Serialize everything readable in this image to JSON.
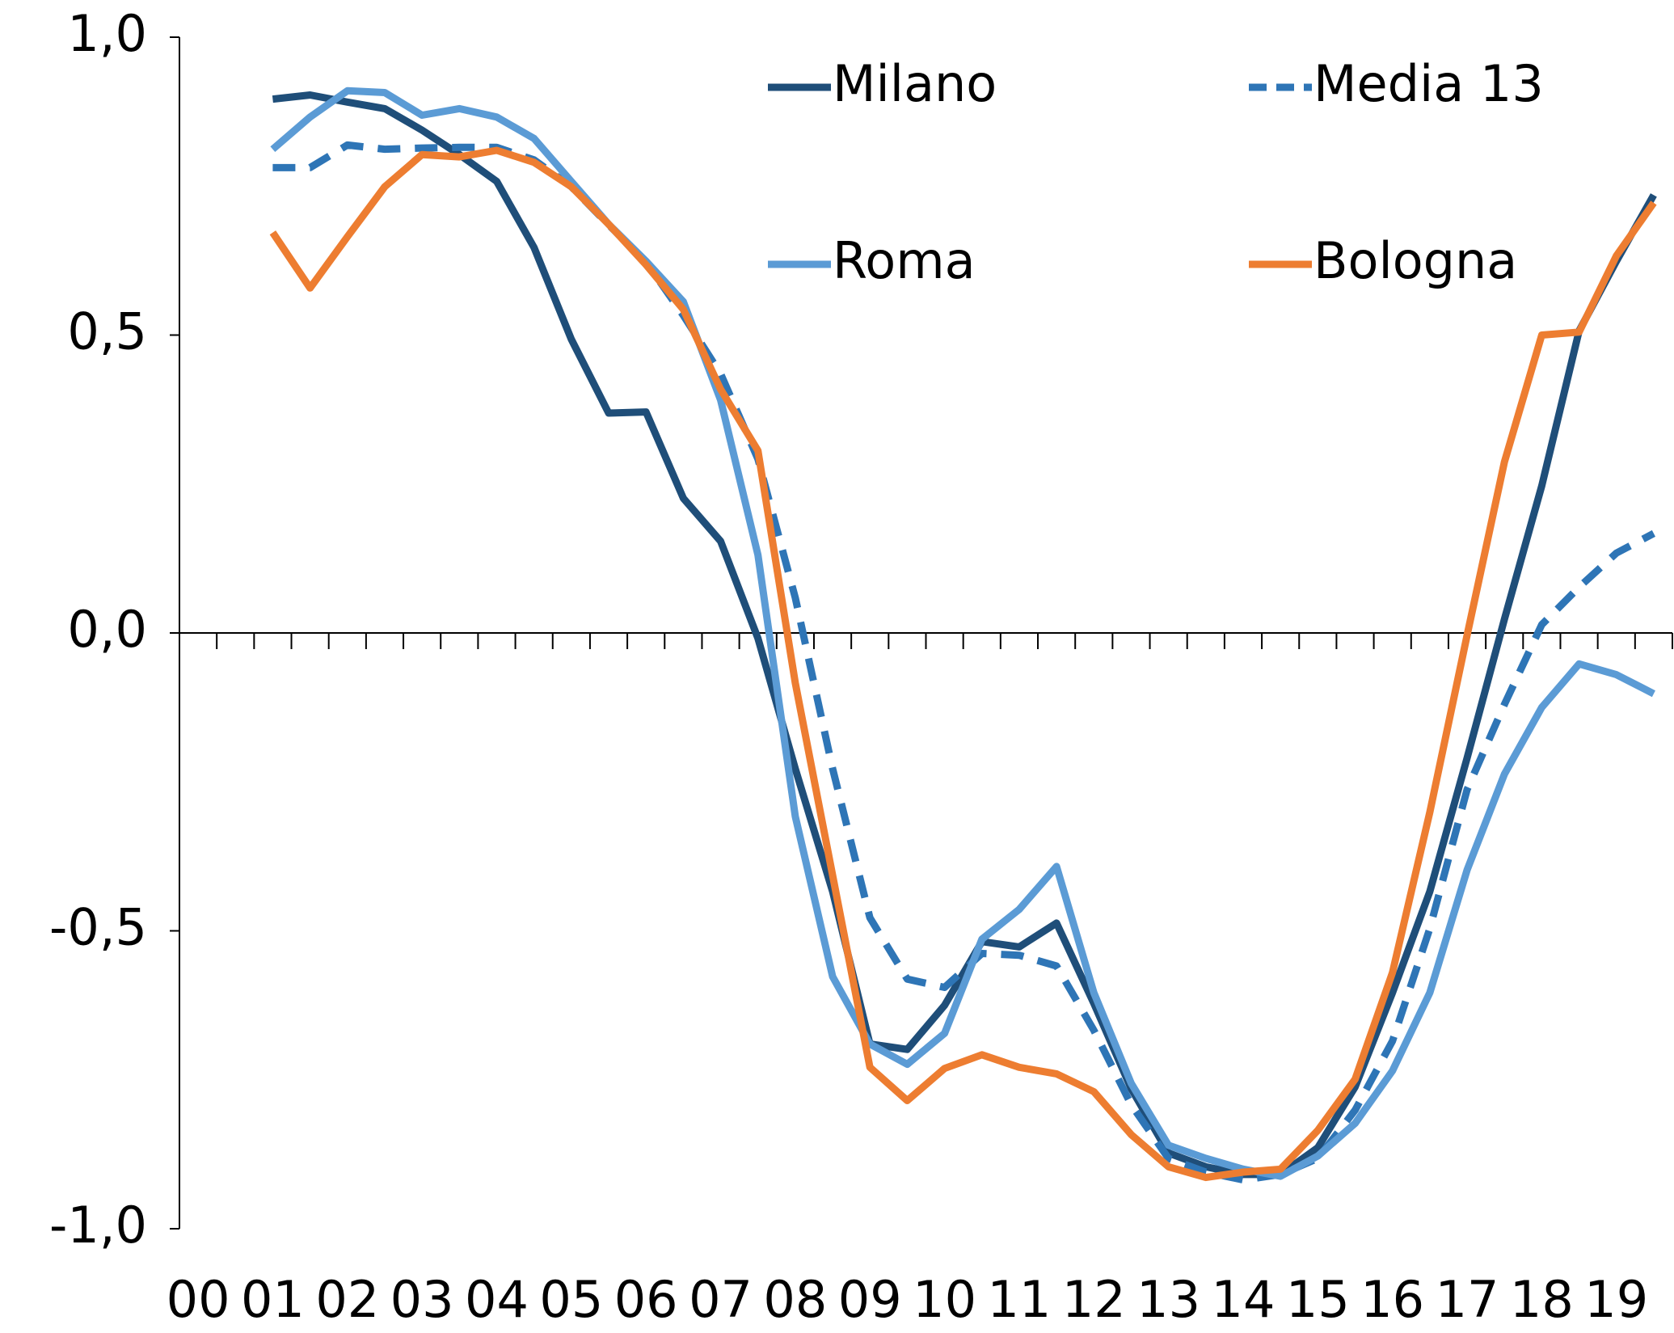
{
  "chart_data": {
    "type": "line",
    "categories": [
      "00",
      null,
      "01",
      null,
      "02",
      null,
      "03",
      null,
      "04",
      null,
      "05",
      null,
      "06",
      null,
      "07",
      null,
      "08",
      null,
      "09",
      null,
      "10",
      null,
      "11",
      null,
      "12",
      null,
      "13",
      null,
      "14",
      null,
      "15",
      null,
      "16",
      null,
      "17",
      null,
      "18",
      null,
      "19",
      null
    ],
    "ylim": [
      -1,
      1
    ],
    "yticks": [
      {
        "value": -1,
        "label": "-1,0"
      },
      {
        "value": -0.5,
        "label": "-0,5"
      },
      {
        "value": 0,
        "label": "0,0"
      },
      {
        "value": 0.5,
        "label": "0,5"
      },
      {
        "value": 1,
        "label": "1,0"
      }
    ],
    "grid": false,
    "legend": "top-right",
    "series": [
      {
        "name": "Milano",
        "color": "#1f4e79",
        "dashed": false,
        "values": [
          null,
          null,
          0.896,
          0.903,
          0.891,
          0.88,
          0.844,
          0.803,
          0.758,
          0.647,
          0.493,
          0.369,
          0.371,
          0.226,
          0.154,
          -0.009,
          -0.228,
          -0.434,
          -0.69,
          -0.699,
          -0.625,
          -0.518,
          -0.527,
          -0.487,
          -0.622,
          -0.765,
          -0.873,
          -0.896,
          -0.909,
          -0.909,
          -0.864,
          -0.762,
          -0.604,
          -0.434,
          -0.21,
          0.023,
          0.247,
          0.507,
          0.624,
          0.735
        ]
      },
      {
        "name": "Media 13",
        "color": "#2e75b6",
        "dashed": true,
        "values": [
          null,
          null,
          0.781,
          0.781,
          0.819,
          0.812,
          0.814,
          0.815,
          0.815,
          0.794,
          0.749,
          0.685,
          0.623,
          0.533,
          0.435,
          0.292,
          0.059,
          -0.228,
          -0.478,
          -0.581,
          -0.595,
          -0.538,
          -0.541,
          -0.559,
          -0.667,
          -0.792,
          -0.882,
          -0.905,
          -0.918,
          -0.909,
          -0.882,
          -0.801,
          -0.685,
          -0.496,
          -0.263,
          -0.12,
          0.014,
          0.077,
          0.134,
          0.167
        ]
      },
      {
        "name": "Roma",
        "color": "#5b9bd5",
        "dashed": false,
        "values": [
          null,
          null,
          0.812,
          0.866,
          0.91,
          0.907,
          0.869,
          0.88,
          0.866,
          0.83,
          0.758,
          0.686,
          0.624,
          0.556,
          0.391,
          0.131,
          -0.308,
          -0.577,
          -0.69,
          -0.724,
          -0.672,
          -0.514,
          -0.464,
          -0.392,
          -0.604,
          -0.756,
          -0.86,
          -0.882,
          -0.9,
          -0.912,
          -0.878,
          -0.823,
          -0.735,
          -0.604,
          -0.398,
          -0.237,
          -0.125,
          -0.052,
          -0.07,
          -0.102
        ]
      },
      {
        "name": "Bologna",
        "color": "#ed7d31",
        "dashed": false,
        "values": [
          null,
          null,
          0.672,
          0.579,
          0.665,
          0.749,
          0.803,
          0.799,
          0.81,
          0.79,
          0.749,
          0.686,
          0.618,
          0.543,
          0.409,
          0.306,
          -0.084,
          -0.407,
          -0.729,
          -0.785,
          -0.731,
          -0.708,
          -0.729,
          -0.74,
          -0.77,
          -0.842,
          -0.896,
          -0.914,
          -0.905,
          -0.9,
          -0.835,
          -0.749,
          -0.57,
          -0.301,
          -0.004,
          0.287,
          0.5,
          0.505,
          0.633,
          0.722
        ]
      }
    ]
  }
}
